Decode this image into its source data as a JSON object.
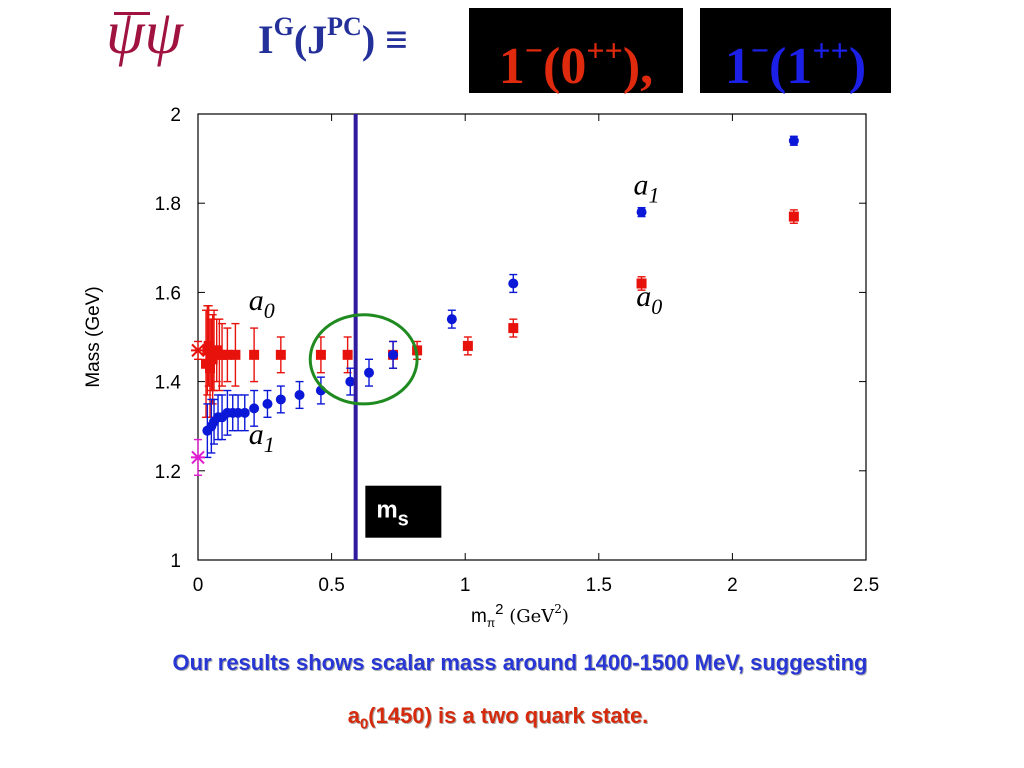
{
  "header": {
    "operator": "ψψ",
    "quantum_label": "I",
    "quantum_sup_g": "G",
    "quantum_jpc": "(J",
    "quantum_sup_pc": "PC",
    "quantum_close": ")",
    "equiv": "≡",
    "box1": {
      "main": "1",
      "sup1": "−",
      "paren": "(0",
      "sup2": "++",
      "close": "),",
      "color": "#e02a0e"
    },
    "box2": {
      "main": "1",
      "sup1": "−",
      "paren": "(1",
      "sup2": "++",
      "close": ")",
      "color": "#1c20e6"
    }
  },
  "chart_data": {
    "type": "scatter",
    "title": "",
    "xlabel": "m",
    "xlabel_sub": "π",
    "xlabel_sup": "2",
    "xlabel_unit": "(GeV",
    "xlabel_unit_sup": "2",
    "xlabel_unit_close": ")",
    "ylabel": "Mass (GeV)",
    "xlim": [
      0,
      2.5
    ],
    "ylim": [
      1,
      2
    ],
    "xticks": [
      0,
      0.5,
      1,
      1.5,
      2,
      2.5
    ],
    "xtick_labels": [
      "0",
      "0.5",
      "1",
      "1.5",
      "2",
      "2.5"
    ],
    "yticks": [
      1,
      1.2,
      1.4,
      1.6,
      1.8,
      2
    ],
    "ytick_labels": [
      "1",
      "1.2",
      "1.4",
      "1.6",
      "1.8",
      "2"
    ],
    "grid": false,
    "series": [
      {
        "name": "a0",
        "marker": "square",
        "color": "#e8120c",
        "x": [
          0.03,
          0.035,
          0.04,
          0.045,
          0.05,
          0.055,
          0.06,
          0.07,
          0.08,
          0.09,
          0.11,
          0.14,
          0.21,
          0.31,
          0.46,
          0.56,
          0.73,
          0.82,
          1.01,
          1.18,
          1.66,
          2.23
        ],
        "y": [
          1.44,
          1.47,
          1.48,
          1.43,
          1.46,
          1.45,
          1.47,
          1.47,
          1.46,
          1.46,
          1.46,
          1.46,
          1.46,
          1.46,
          1.46,
          1.46,
          1.46,
          1.47,
          1.48,
          1.52,
          1.62,
          1.77
        ],
        "err": [
          0.12,
          0.1,
          0.09,
          0.11,
          0.08,
          0.1,
          0.09,
          0.07,
          0.08,
          0.07,
          0.06,
          0.07,
          0.06,
          0.04,
          0.04,
          0.04,
          0.03,
          0.02,
          0.02,
          0.02,
          0.015,
          0.015
        ]
      },
      {
        "name": "a1",
        "marker": "circle",
        "color": "#0c18d8",
        "x": [
          0.035,
          0.05,
          0.06,
          0.075,
          0.09,
          0.11,
          0.13,
          0.15,
          0.175,
          0.21,
          0.26,
          0.31,
          0.38,
          0.46,
          0.57,
          0.64,
          0.73,
          0.95,
          1.18,
          1.66,
          2.23
        ],
        "y": [
          1.29,
          1.3,
          1.31,
          1.32,
          1.32,
          1.33,
          1.33,
          1.33,
          1.33,
          1.34,
          1.35,
          1.36,
          1.37,
          1.38,
          1.4,
          1.42,
          1.46,
          1.54,
          1.62,
          1.78,
          1.94
        ],
        "err": [
          0.06,
          0.06,
          0.05,
          0.05,
          0.05,
          0.05,
          0.04,
          0.04,
          0.04,
          0.04,
          0.03,
          0.03,
          0.03,
          0.03,
          0.03,
          0.03,
          0.03,
          0.02,
          0.02,
          0.01,
          0.01
        ]
      },
      {
        "name": "",
        "marker": "star",
        "color": "#e8120c",
        "x": [
          0.0
        ],
        "y": [
          1.47
        ],
        "err": [
          0.02
        ]
      },
      {
        "name": "",
        "marker": "star",
        "color": "#e01ad0",
        "x": [
          0.0
        ],
        "y": [
          1.23
        ],
        "err": [
          0.04
        ]
      }
    ],
    "annotations": [
      {
        "text": "a",
        "sub": "0",
        "x": 0.19,
        "y": 1.56
      },
      {
        "text": "a",
        "sub": "1",
        "x": 0.19,
        "y": 1.26
      },
      {
        "text": "a",
        "sub": "1",
        "x": 1.63,
        "y": 1.82
      },
      {
        "text": "a",
        "sub": "0",
        "x": 1.64,
        "y": 1.57
      },
      {
        "text": "m",
        "sub": "s",
        "x": 0.63,
        "y": 1.05,
        "boxed": true
      }
    ],
    "vertical_line": {
      "x": 0.59,
      "color": "#2f1aa0"
    },
    "ellipse": {
      "cx": 0.62,
      "cy": 1.45,
      "rx": 0.2,
      "ry": 0.1,
      "color": "#1f8a1f"
    }
  },
  "caption": {
    "line1": "Our results shows scalar mass around  1400-1500 MeV, suggesting",
    "line2_main": "a",
    "line2_sub": "0",
    "line2_rest": "(1450) is a two quark state."
  }
}
